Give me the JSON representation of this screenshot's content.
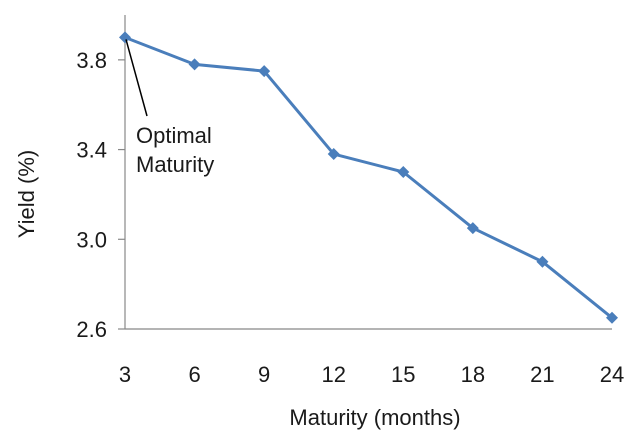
{
  "chart_data": {
    "type": "line",
    "title": "",
    "xlabel": "Maturity (months)",
    "ylabel": "Yield (%)",
    "x": [
      3,
      6,
      9,
      12,
      15,
      18,
      21,
      24
    ],
    "x_tick_labels": [
      "3",
      "6",
      "9",
      "12",
      "15",
      "18",
      "21",
      "24"
    ],
    "y_tick_labels": [
      "2.6",
      "3.0",
      "3.4",
      "3.8"
    ],
    "y_ticks": [
      2.6,
      3.0,
      3.4,
      3.8
    ],
    "ylim": [
      2.6,
      4.0
    ],
    "grid": false,
    "legend": "none",
    "series": [
      {
        "values": [
          3.9,
          3.78,
          3.75,
          3.38,
          3.3,
          3.05,
          2.9,
          2.65
        ],
        "color": "#4a7ebb",
        "marker": "diamond"
      }
    ],
    "annotation": {
      "lines": [
        "Optimal",
        "Maturity"
      ],
      "points_to": {
        "x": 3,
        "y": 3.9
      }
    }
  }
}
